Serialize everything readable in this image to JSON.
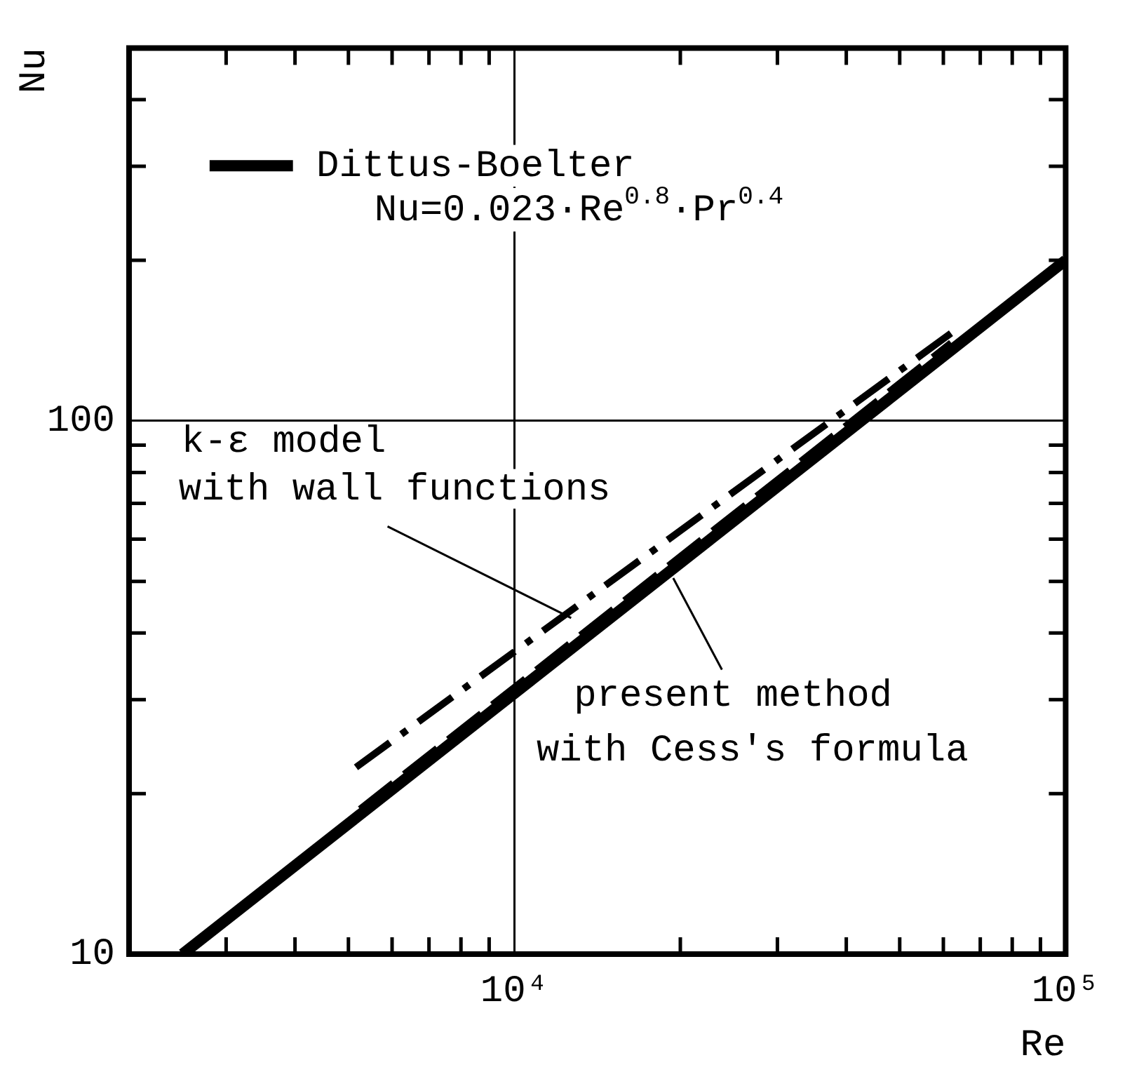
{
  "chart_data": {
    "type": "line",
    "xlabel": "Re",
    "ylabel": "Nu",
    "log": "xy",
    "grid": true,
    "legend": "top left",
    "marker": "none",
    "xlim": [
      2000,
      100000
    ],
    "xticks": [
      {
        "value": 3000,
        "label": null
      },
      {
        "value": 4000,
        "label": null
      },
      {
        "value": 5000,
        "label": null
      },
      {
        "value": 6000,
        "label": null
      },
      {
        "value": 7000,
        "label": null
      },
      {
        "value": 8000,
        "label": null
      },
      {
        "value": 9000,
        "label": null
      },
      {
        "value": 10000,
        "label": "10⁴"
      },
      {
        "value": 20000,
        "label": null
      },
      {
        "value": 30000,
        "label": null
      },
      {
        "value": 40000,
        "label": null
      },
      {
        "value": 50000,
        "label": null
      },
      {
        "value": 60000,
        "label": null
      },
      {
        "value": 70000,
        "label": null
      },
      {
        "value": 80000,
        "label": null
      },
      {
        "value": 90000,
        "label": null
      },
      {
        "value": 100000,
        "label": "10⁵"
      }
    ],
    "ylim": [
      10,
      500
    ],
    "yticks": [
      10,
      {
        "value": 20,
        "label": null
      },
      {
        "value": 30,
        "label": null
      },
      {
        "value": 40,
        "label": null
      },
      {
        "value": 50,
        "label": null
      },
      {
        "value": 60,
        "label": null
      },
      {
        "value": 70,
        "label": null
      },
      {
        "value": 80,
        "label": null
      },
      {
        "value": 90,
        "label": null
      },
      100,
      {
        "value": 200,
        "label": null
      },
      {
        "value": 300,
        "label": null
      },
      {
        "value": 400,
        "label": null
      }
    ],
    "series": [
      {
        "name": "Dittus-Boelter",
        "color": "#000000",
        "line_style": "solid",
        "x": [
          2500,
          100000
        ],
        "values": [
          10,
          200
        ]
      },
      {
        "name": "k-ε model\nwith wall functions",
        "color": "#000000",
        "line_style": "dashdot",
        "x": [
          5160,
          62000
        ],
        "values": [
          22.4,
          146
        ]
      },
      {
        "name": "present method\nwith Cess's formula",
        "color": "#000000",
        "line_style": "dashed",
        "x": [
          5250,
          62000
        ],
        "values": [
          18.7,
          140
        ]
      }
    ],
    "annotations": [
      "Nu=0.023·Re$^{0.8}$·Pr$^{0.4}$"
    ]
  }
}
